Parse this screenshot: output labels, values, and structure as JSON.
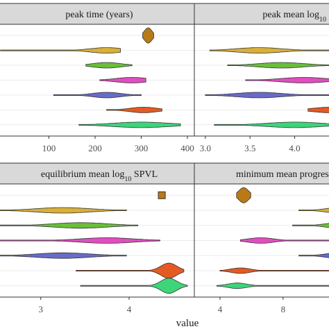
{
  "chart_data": {
    "type": "violin",
    "xlabel": "value",
    "ylabel": "",
    "grid": true,
    "legend": "none",
    "colors": {
      "strip_bg": "#d9d9d9",
      "grid": "#ebebeb",
      "frame": "#333333",
      "series": [
        "#b87a17",
        "#d8b03a",
        "#6abf3a",
        "#e04ec0",
        "#6a6ac8",
        "#e35a22",
        "#3ed47a"
      ]
    },
    "panels": [
      {
        "id": "peak-time",
        "title": "peak time (years)",
        "xlim": [
          0,
          400
        ],
        "xticks": [
          100,
          200,
          300,
          400
        ],
        "xticklabels": [
          "100",
          "200",
          "300",
          "400"
        ],
        "rows": [
          {
            "lo": null,
            "hi": null,
            "center": 315,
            "spread": 8,
            "point": false
          },
          {
            "lo": -5,
            "hi": 255,
            "center": 225,
            "spread": 35,
            "point": false
          },
          {
            "lo": 180,
            "hi": 280,
            "center": 225,
            "spread": 30,
            "point": false
          },
          {
            "lo": 210,
            "hi": 310,
            "center": 280,
            "spread": 35,
            "point": false
          },
          {
            "lo": 110,
            "hi": 300,
            "center": 225,
            "spread": 30,
            "point": false
          },
          {
            "lo": 225,
            "hi": 345,
            "center": 305,
            "spread": 30,
            "point": false
          },
          {
            "lo": 165,
            "hi": 385,
            "center": 300,
            "spread": 60,
            "point": false
          }
        ]
      },
      {
        "id": "peak-mean",
        "title": "peak mean log",
        "title_sub": "10",
        "xlim": [
          2.97,
          4.4
        ],
        "xticks": [
          3.0,
          3.5,
          4.0
        ],
        "xticklabels": [
          "3.0",
          "3.5",
          "4.0"
        ],
        "rows": [
          {
            "lo": null,
            "hi": null,
            "center": null,
            "spread": null,
            "point": false
          },
          {
            "lo": 3.05,
            "hi": 4.5,
            "center": 3.6,
            "spread": 0.25,
            "point": false
          },
          {
            "lo": 3.25,
            "hi": 4.5,
            "center": 3.85,
            "spread": 0.25,
            "point": false
          },
          {
            "lo": 3.45,
            "hi": 4.5,
            "center": 4.1,
            "spread": 0.25,
            "point": false
          },
          {
            "lo": 3.0,
            "hi": 4.5,
            "center": 3.6,
            "spread": 0.25,
            "point": false
          },
          {
            "lo": 4.15,
            "hi": 4.5,
            "center": 4.4,
            "spread": 0.2,
            "point": false
          },
          {
            "lo": 3.1,
            "hi": 4.5,
            "center": 4.0,
            "spread": 0.3,
            "point": false
          }
        ]
      },
      {
        "id": "equilibrium-mean",
        "title": "equilibrium mean log",
        "title_sub": "10",
        "title_suffix": " SPVL",
        "xlim": [
          2.57,
          4.66
        ],
        "xticks": [
          3,
          4
        ],
        "xticklabels": [
          "3",
          "4"
        ],
        "rows": [
          {
            "lo": null,
            "hi": null,
            "center": 4.37,
            "spread": 0,
            "point": true
          },
          {
            "lo": 2.5,
            "hi": 3.97,
            "center": 3.25,
            "spread": 0.3,
            "point": false
          },
          {
            "lo": 2.5,
            "hi": 4.1,
            "center": 3.45,
            "spread": 0.3,
            "point": false
          },
          {
            "lo": 2.5,
            "hi": 4.35,
            "center": 3.75,
            "spread": 0.3,
            "point": false
          },
          {
            "lo": 2.5,
            "hi": 3.97,
            "center": 3.25,
            "spread": 0.3,
            "point": false
          },
          {
            "lo": 3.4,
            "hi": 4.62,
            "center": 4.45,
            "spread": 0.09,
            "point": false
          },
          {
            "lo": 3.45,
            "hi": 4.66,
            "center": 4.45,
            "spread": 0.09,
            "point": false
          }
        ]
      },
      {
        "id": "minimum-mean-progression",
        "title": "minimum mean progress",
        "xlim": [
          2.9,
          11
        ],
        "xticks": [
          4,
          8
        ],
        "xticklabels": [
          "4",
          "8"
        ],
        "rows": [
          {
            "lo": null,
            "hi": null,
            "center": 5.5,
            "spread": 0.3,
            "point": false
          },
          {
            "lo": 9.0,
            "hi": 11.5,
            "center": 11.5,
            "spread": 0.8,
            "point": false
          },
          {
            "lo": 8.6,
            "hi": 11.5,
            "center": 11.5,
            "spread": 0.8,
            "point": false
          },
          {
            "lo": 5.3,
            "hi": 11.5,
            "center": 6.6,
            "spread": 0.8,
            "point": false
          },
          {
            "lo": 9.0,
            "hi": 11.5,
            "center": 11.5,
            "spread": 0.8,
            "point": false
          },
          {
            "lo": 4.0,
            "hi": 11.5,
            "center": 5.3,
            "spread": 0.6,
            "point": false
          },
          {
            "lo": 3.8,
            "hi": 11.5,
            "center": 5.1,
            "spread": 0.6,
            "point": false
          }
        ]
      }
    ]
  }
}
